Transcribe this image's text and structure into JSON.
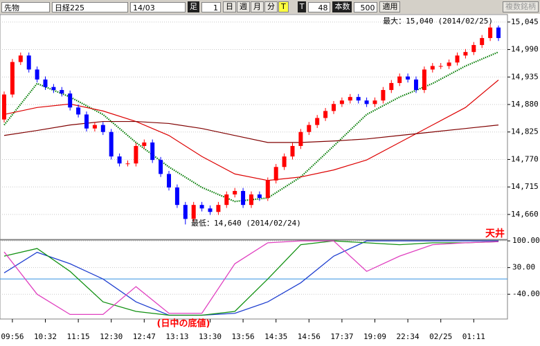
{
  "toolbar": {
    "market": "先物",
    "index": "日経225",
    "contract": "14/03",
    "bar_label": "足",
    "bar_value": "1",
    "buttons": [
      "日",
      "週",
      "月",
      "分",
      "T"
    ],
    "t_label": "T",
    "t_value": "48",
    "count_label": "本数",
    "count_value": "500",
    "apply": "適用",
    "multi": "複数銘柄"
  },
  "chart_data": [
    {
      "type": "candlestick",
      "categories": [
        null,
        "09:56",
        null,
        null,
        null,
        "10:32",
        null,
        null,
        null,
        "11:15",
        null,
        null,
        null,
        "12:30",
        null,
        null,
        null,
        "12:47",
        null,
        null,
        null,
        "13:13",
        null,
        null,
        null,
        "13:30",
        null,
        null,
        null,
        "13:56",
        null,
        null,
        null,
        "14:35",
        null,
        null,
        null,
        "14:56",
        null,
        null,
        null,
        "17:37",
        null,
        null,
        null,
        "19:09",
        null,
        null,
        null,
        "22:34",
        null,
        null,
        null,
        "02/25",
        null,
        null,
        null,
        "01:11",
        null,
        null,
        null
      ],
      "open": [
        14850,
        14900,
        14965,
        14978,
        14950,
        14930,
        14915,
        14909,
        14902,
        14874,
        14860,
        14832,
        14839,
        14825,
        14776,
        14762,
        14762,
        14797,
        14804,
        14769,
        14741,
        14714,
        14679,
        14651,
        14679,
        14672,
        14665,
        14679,
        14700,
        14707,
        14679,
        14700,
        14693,
        14728,
        14755,
        14776,
        14797,
        14825,
        14839,
        14853,
        14867,
        14881,
        14888,
        14895,
        14888,
        14881,
        14888,
        14909,
        14923,
        14936,
        14930,
        14909,
        14950,
        14957,
        14957,
        14964,
        14978,
        14985,
        14999,
        15013,
        15034
      ],
      "high": [
        14906,
        14971,
        14984,
        14984,
        14956,
        14936,
        14921,
        14915,
        14908,
        14880,
        14866,
        14845,
        14845,
        14831,
        14782,
        14768,
        14803,
        14810,
        14810,
        14775,
        14747,
        14720,
        14685,
        14685,
        14685,
        14678,
        14685,
        14706,
        14713,
        14713,
        14706,
        14706,
        14734,
        14761,
        14782,
        14803,
        14831,
        14845,
        14859,
        14873,
        14887,
        14894,
        14901,
        14901,
        14894,
        14894,
        14915,
        14929,
        14942,
        14942,
        14936,
        14956,
        14963,
        14963,
        14970,
        14984,
        14991,
        15005,
        15019,
        15040,
        15038
      ],
      "low": [
        14844,
        14894,
        14959,
        14944,
        14924,
        14909,
        14903,
        14896,
        14868,
        14854,
        14826,
        14826,
        14819,
        14770,
        14756,
        14756,
        14756,
        14791,
        14763,
        14735,
        14708,
        14673,
        14640,
        14645,
        14666,
        14659,
        14659,
        14673,
        14694,
        14673,
        14673,
        14687,
        14687,
        14722,
        14749,
        14770,
        14791,
        14819,
        14833,
        14847,
        14861,
        14875,
        14882,
        14882,
        14875,
        14875,
        14882,
        14903,
        14917,
        14924,
        14903,
        14903,
        14944,
        14951,
        14951,
        14958,
        14972,
        14979,
        14993,
        15007,
        15007
      ],
      "close": [
        14900,
        14965,
        14978,
        14950,
        14930,
        14915,
        14909,
        14902,
        14874,
        14860,
        14832,
        14839,
        14825,
        14776,
        14762,
        14762,
        14797,
        14804,
        14769,
        14741,
        14714,
        14679,
        14651,
        14679,
        14672,
        14665,
        14679,
        14700,
        14707,
        14679,
        14700,
        14693,
        14728,
        14755,
        14776,
        14797,
        14825,
        14839,
        14853,
        14867,
        14881,
        14888,
        14895,
        14888,
        14881,
        14888,
        14909,
        14923,
        14936,
        14930,
        14909,
        14950,
        14957,
        14957,
        14964,
        14978,
        14985,
        14999,
        15013,
        15034,
        15013
      ],
      "up_color": "#ff0000",
      "down_color": "#0000ff",
      "lines": [
        {
          "color": "#007a00",
          "style": "dotted",
          "x": [
            0,
            4,
            8,
            12,
            16,
            20,
            24,
            28,
            32,
            36,
            40,
            44,
            48,
            52,
            56,
            60
          ],
          "values": [
            14839,
            14922,
            14895,
            14860,
            14804,
            14755,
            14714,
            14686,
            14693,
            14735,
            14797,
            14860,
            14895,
            14922,
            14957,
            14985
          ]
        },
        {
          "color": "#dd0000",
          "style": "solid",
          "x": [
            0,
            4,
            8,
            12,
            16,
            20,
            24,
            28,
            32,
            36,
            40,
            44,
            48,
            52,
            56,
            60
          ],
          "values": [
            14860,
            14874,
            14881,
            14867,
            14846,
            14818,
            14776,
            14741,
            14728,
            14735,
            14749,
            14769,
            14804,
            14839,
            14874,
            14929
          ]
        },
        {
          "color": "#800000",
          "style": "solid",
          "x": [
            0,
            4,
            8,
            12,
            16,
            20,
            24,
            28,
            32,
            36,
            40,
            44,
            48,
            52,
            56,
            60
          ],
          "values": [
            14818,
            14828,
            14839,
            14846,
            14846,
            14842,
            14832,
            14818,
            14804,
            14804,
            14807,
            14811,
            14818,
            14825,
            14832,
            14839
          ]
        }
      ],
      "ylim": [
        14610,
        15060
      ],
      "yticks": [
        {
          "value": 14660,
          "label": "14,660"
        },
        {
          "value": 14715,
          "label": "14,715"
        },
        {
          "value": 14770,
          "label": "14,770"
        },
        {
          "value": 14825,
          "label": "14,825"
        },
        {
          "value": 14880,
          "label": "14,880"
        },
        {
          "value": 14935,
          "label": "14,935"
        },
        {
          "value": 14990,
          "label": "14,990"
        },
        {
          "value": 15045,
          "label": "15,045"
        }
      ],
      "grid": true,
      "annotations": {
        "max": "最大：15,040 (2014/02/25)",
        "min": "最低：14,640 (2014/02/24)"
      }
    },
    {
      "type": "line",
      "x": [
        0,
        4,
        8,
        12,
        16,
        20,
        24,
        28,
        32,
        36,
        40,
        44,
        48,
        52,
        56,
        60
      ],
      "series": [
        {
          "color": "#1f3fd0",
          "values": [
            16,
            70,
            40,
            0,
            -60,
            -95,
            -95,
            -90,
            -60,
            -10,
            60,
            100,
            100,
            100,
            100,
            100
          ]
        },
        {
          "color": "#109010",
          "values": [
            60,
            80,
            20,
            -60,
            -85,
            -95,
            -95,
            -85,
            0,
            90,
            100,
            95,
            90,
            95,
            95,
            98
          ]
        },
        {
          "color": "#e040c0",
          "values": [
            71,
            -40,
            -93,
            -93,
            -20,
            -90,
            -90,
            40,
            95,
            100,
            100,
            20,
            60,
            90,
            95,
            98
          ]
        }
      ],
      "reference_line": 0,
      "reference_color": "#3090e0",
      "ylim": [
        -105,
        102
      ],
      "yticks": [
        {
          "value": -40,
          "label": "-40.00"
        },
        {
          "value": 30,
          "label": "30.00"
        },
        {
          "value": 100,
          "label": "100.00"
        }
      ],
      "annotations": {
        "top": "天井",
        "bottom": "(日中の底値)"
      }
    }
  ]
}
